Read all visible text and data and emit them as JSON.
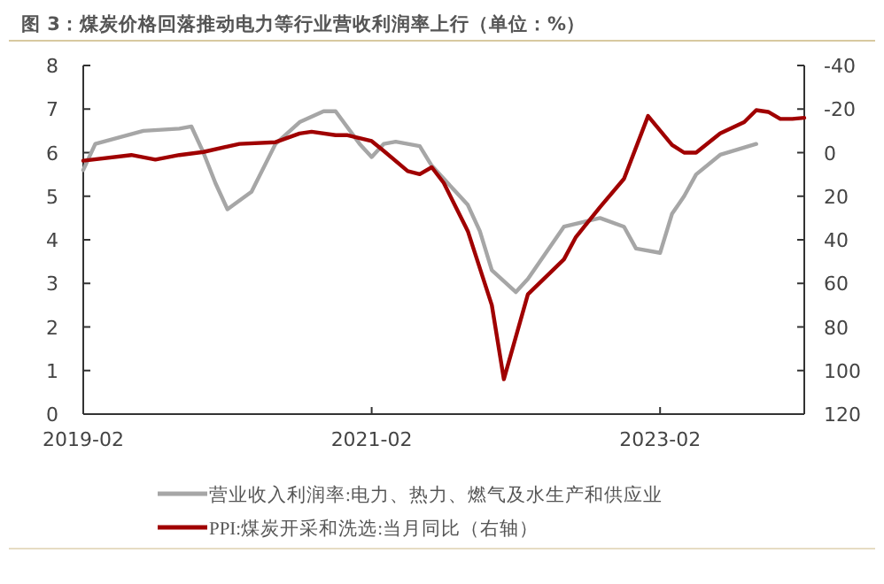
{
  "chart_data": {
    "type": "line",
    "title": "图 3：煤炭价格回落推动电力等行业营收利润率上行（单位：%）",
    "xlim": [
      "2019-02",
      "2024-02"
    ],
    "xticks": [
      "2019-02",
      "2021-02",
      "2023-02"
    ],
    "ylim": [
      0,
      8
    ],
    "yticks": [
      0,
      1,
      2,
      3,
      4,
      5,
      6,
      7,
      8
    ],
    "y2lim": [
      120,
      -40
    ],
    "y2ticks": [
      -40,
      -20,
      0,
      20,
      40,
      60,
      80,
      100,
      120
    ],
    "grid": false,
    "legend": "bottom",
    "marker": "none",
    "line_style": "solid",
    "series": [
      {
        "name": "营业收入利润率:电力、热力、燃气及水生产和供应业",
        "color": "#a6a6a6",
        "x": [
          "2019-02",
          "2019-03",
          "2019-07",
          "2019-10",
          "2019-11",
          "2019-12",
          "2020-01",
          "2020-02",
          "2020-04",
          "2020-06",
          "2020-08",
          "2020-10",
          "2020-11",
          "2021-01",
          "2021-02",
          "2021-03",
          "2021-04",
          "2021-06",
          "2021-07",
          "2021-09",
          "2021-10",
          "2021-11",
          "2021-12",
          "2022-02",
          "2022-03",
          "2022-06",
          "2022-09",
          "2022-11",
          "2022-12",
          "2023-02",
          "2023-03",
          "2023-04",
          "2023-05",
          "2023-07",
          "2023-10"
        ],
        "values": [
          5.6,
          6.2,
          6.5,
          6.55,
          6.6,
          6.0,
          5.3,
          4.7,
          5.1,
          6.2,
          6.7,
          6.95,
          6.95,
          6.2,
          5.9,
          6.2,
          6.25,
          6.15,
          5.7,
          5.1,
          4.8,
          4.2,
          3.3,
          2.8,
          3.1,
          4.3,
          4.5,
          4.3,
          3.8,
          3.7,
          4.6,
          5.0,
          5.5,
          5.95,
          6.2
        ]
      },
      {
        "name": "PPI:煤炭开采和洗选:当月同比（右轴）",
        "color": "#a00000",
        "axis": "y2",
        "x": [
          "2019-02",
          "2019-06",
          "2019-08",
          "2019-10",
          "2019-12",
          "2020-03",
          "2020-06",
          "2020-08",
          "2020-09",
          "2020-11",
          "2020-12",
          "2021-02",
          "2021-03",
          "2021-05",
          "2021-06",
          "2021-07",
          "2021-08",
          "2021-09",
          "2021-10",
          "2021-12",
          "2022-01",
          "2022-03",
          "2022-06",
          "2022-07",
          "2022-09",
          "2022-11",
          "2023-01",
          "2023-03",
          "2023-04",
          "2023-05",
          "2023-07",
          "2023-09",
          "2023-10",
          "2023-11",
          "2023-12",
          "2024-01",
          "2024-02"
        ],
        "values": [
          3.7,
          1.1,
          3.2,
          1.1,
          -0.3,
          -4,
          -4.8,
          -8.8,
          -9.6,
          -8,
          -8,
          -5.3,
          -0.8,
          8.5,
          9.9,
          6.7,
          13.9,
          25,
          36,
          70,
          104,
          65,
          49,
          38.7,
          25,
          12,
          -16.8,
          -3.5,
          0,
          0,
          -8.8,
          -14,
          -19.5,
          -18.7,
          -15.5,
          -15.5,
          -16
        ]
      }
    ]
  }
}
